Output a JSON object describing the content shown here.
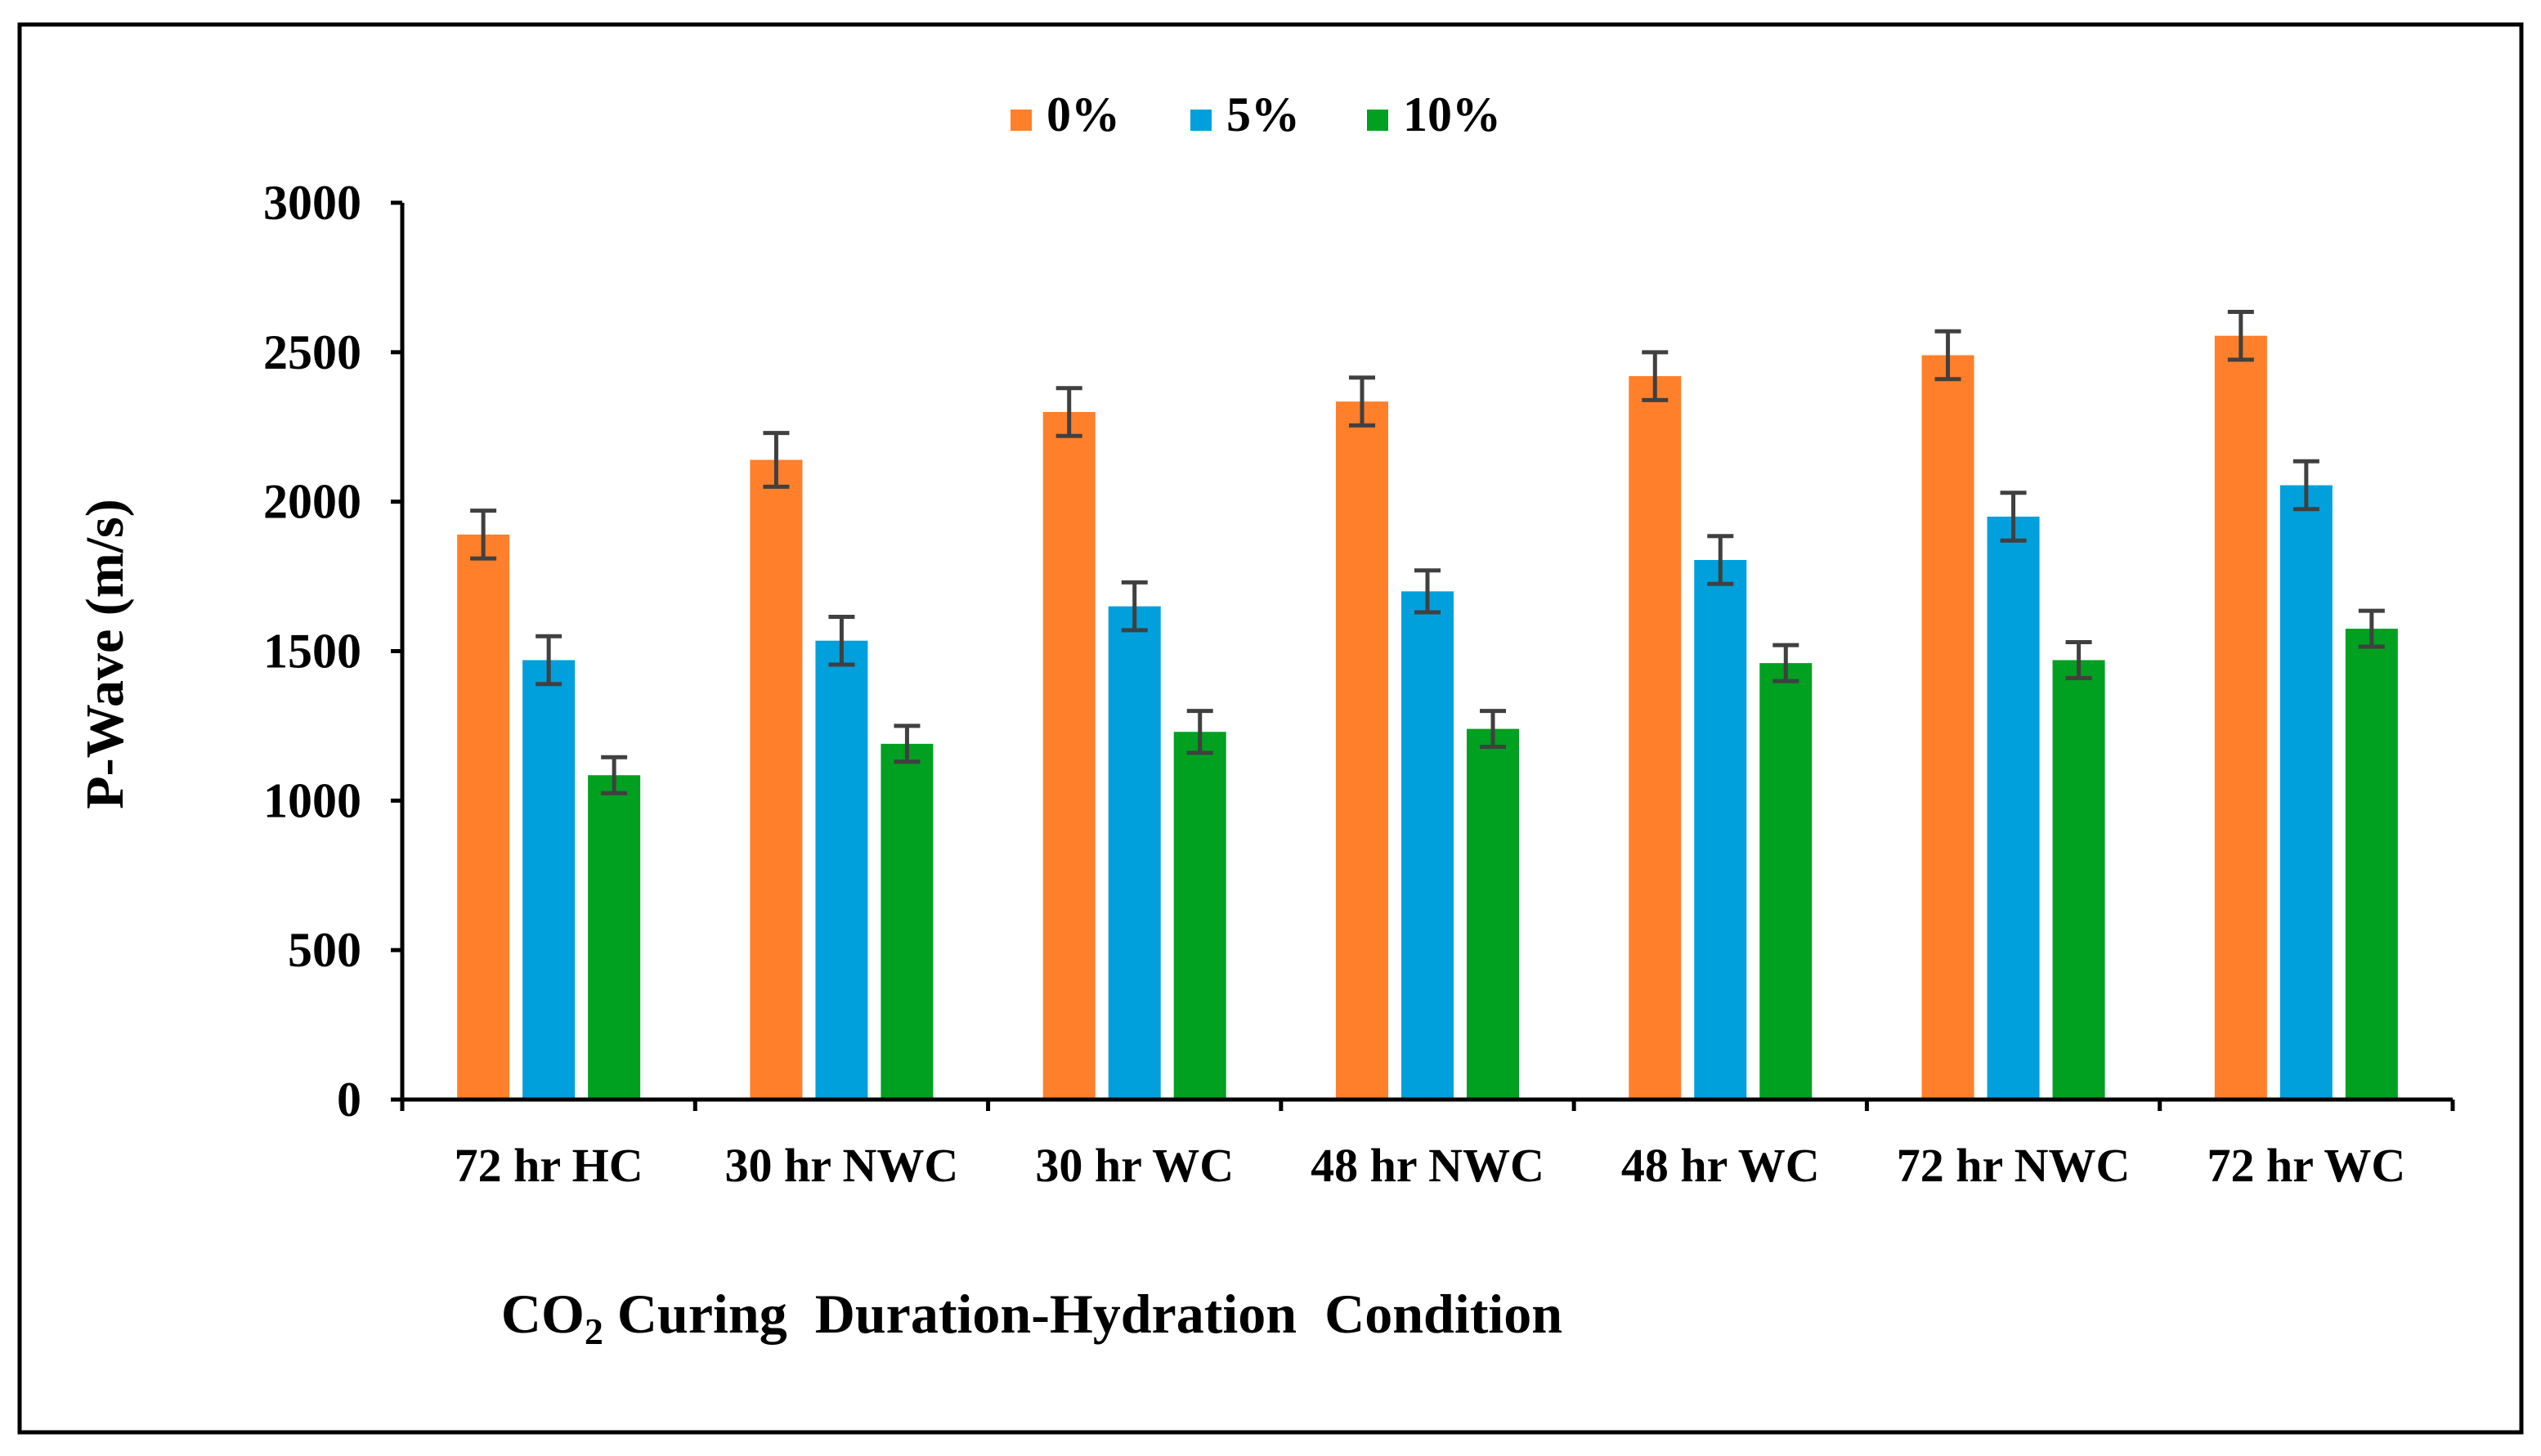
{
  "chart_data": {
    "type": "bar",
    "title": "",
    "xlabel_main": "CO",
    "xlabel_sub": "2",
    "xlabel_rest": " Curing  Duration-Hydration  Condition",
    "ylabel": "P-Wave  (m/s)",
    "ylim": [
      0,
      3000
    ],
    "yticks": [
      0,
      500,
      1000,
      1500,
      2000,
      2500,
      3000
    ],
    "ytick_labels": [
      "0",
      "500",
      "1000",
      "1500",
      "2000",
      "2500",
      "3000"
    ],
    "grid": false,
    "legend_position": "top-center",
    "categories": [
      "72 hr HC",
      "30 hr NWC",
      "30 hr WC",
      "48 hr NWC",
      "48 hr WC",
      "72 hr NWC",
      "72 hr WC"
    ],
    "series": [
      {
        "name": "0%",
        "color": "#FF7F2A",
        "values": [
          1890,
          2140,
          2300,
          2335,
          2420,
          2490,
          2555
        ],
        "errors": [
          80,
          90,
          80,
          80,
          80,
          80,
          80
        ]
      },
      {
        "name": "5%",
        "color": "#00A0DC",
        "values": [
          1470,
          1535,
          1650,
          1700,
          1805,
          1950,
          2055
        ],
        "errors": [
          80,
          80,
          80,
          70,
          80,
          80,
          80
        ]
      },
      {
        "name": "10%",
        "color": "#00A020",
        "values": [
          1085,
          1190,
          1230,
          1240,
          1460,
          1470,
          1575
        ],
        "errors": [
          60,
          60,
          70,
          60,
          60,
          60,
          60
        ]
      }
    ]
  }
}
